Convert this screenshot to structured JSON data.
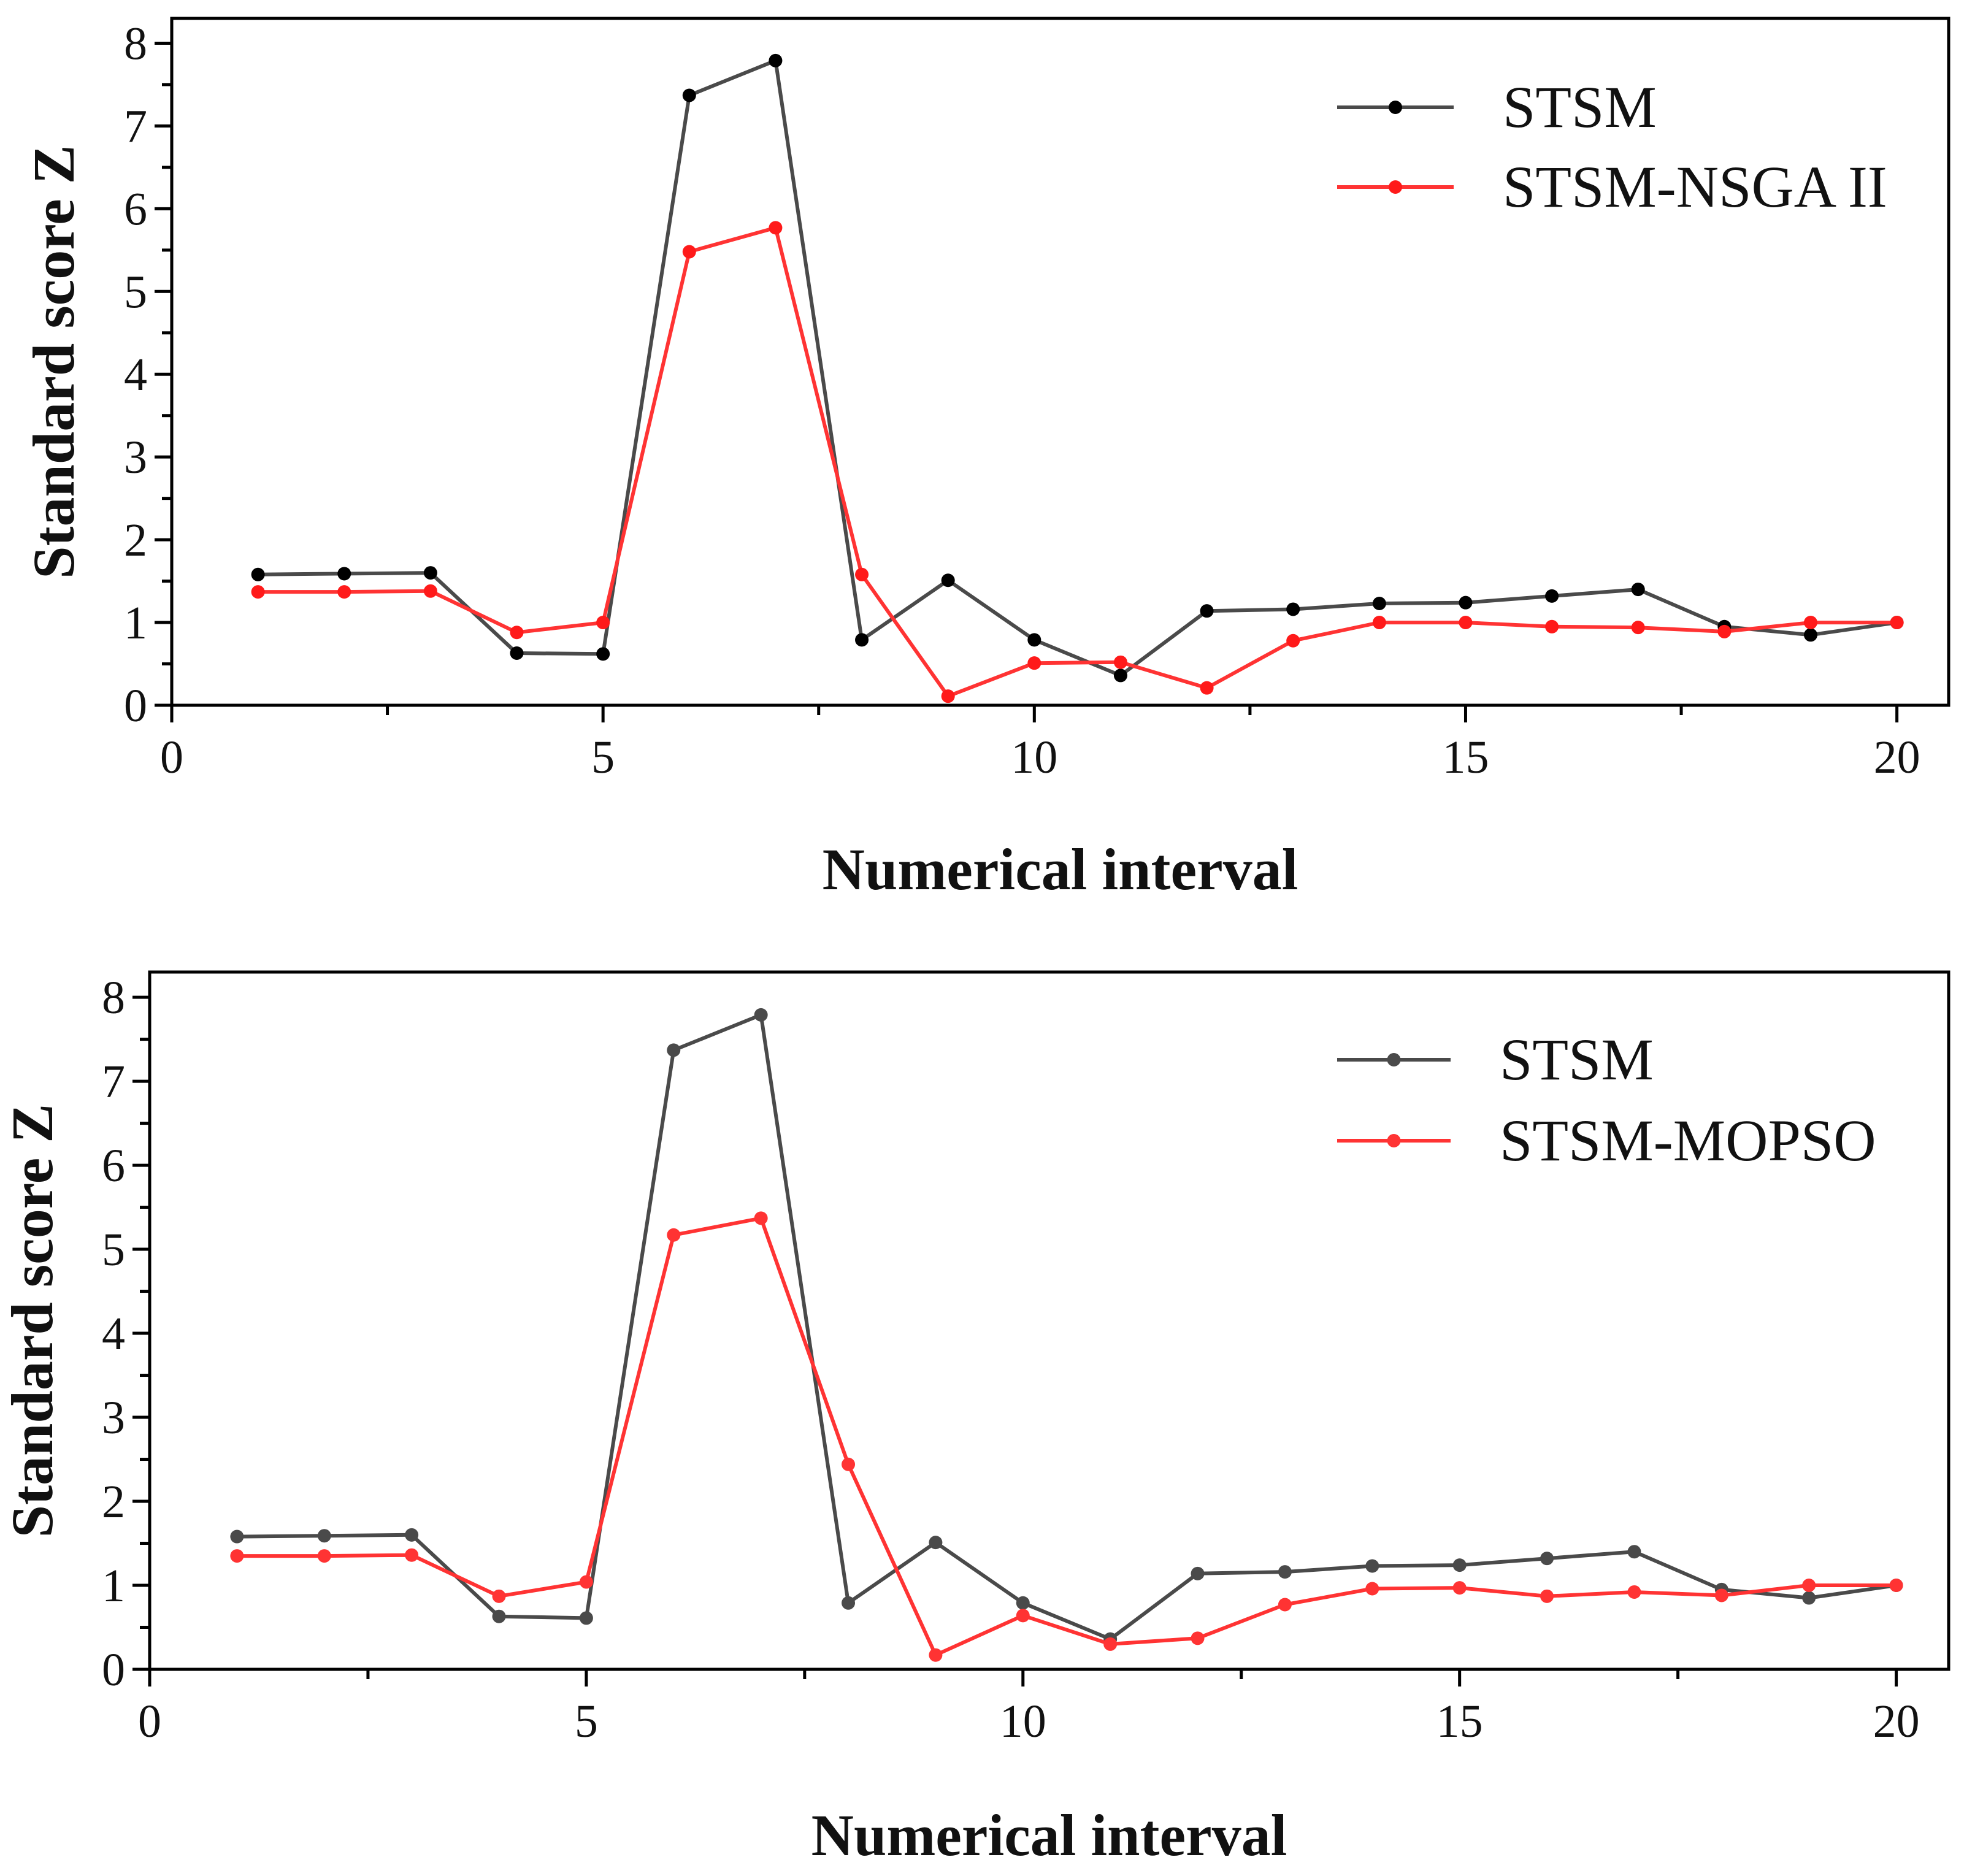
{
  "chart_data": [
    {
      "type": "line",
      "title": "",
      "xlabel": "Numerical interval",
      "ylabel": "Standard score Z",
      "xlim": [
        0,
        20.6
      ],
      "ylim": [
        0,
        8.3
      ],
      "xticks": [
        0,
        5,
        10,
        15,
        20
      ],
      "yticks": [
        0,
        1,
        2,
        3,
        4,
        5,
        6,
        7,
        8
      ],
      "legend_position": "top-right",
      "grid": false,
      "x": [
        1,
        2,
        3,
        4,
        5,
        6,
        7,
        8,
        9,
        10,
        11,
        12,
        13,
        14,
        15,
        16,
        17,
        18,
        19,
        20
      ],
      "series": [
        {
          "name": "STSM",
          "line_color": "#4a4a4a",
          "marker_color": "#000000",
          "values": [
            1.58,
            1.59,
            1.6,
            0.63,
            0.62,
            7.37,
            7.79,
            0.79,
            1.51,
            0.79,
            0.36,
            1.14,
            1.16,
            1.23,
            1.24,
            1.32,
            1.4,
            0.95,
            0.85,
            1.0
          ]
        },
        {
          "name": "STSM-NSGA II",
          "line_color": "#ff3333",
          "marker_color": "#ff1a1a",
          "values": [
            1.37,
            1.37,
            1.38,
            0.88,
            1.0,
            5.48,
            5.77,
            1.58,
            0.11,
            0.51,
            0.52,
            0.21,
            0.78,
            1.0,
            1.0,
            0.95,
            0.94,
            0.89,
            1.0,
            1.0
          ]
        }
      ]
    },
    {
      "type": "line",
      "title": "",
      "xlabel": "Numerical interval",
      "ylabel": "Standard score Z",
      "xlim": [
        0,
        20.6
      ],
      "ylim": [
        0,
        8.3
      ],
      "xticks": [
        0,
        5,
        10,
        15,
        20
      ],
      "yticks": [
        0,
        1,
        2,
        3,
        4,
        5,
        6,
        7,
        8
      ],
      "legend_position": "top-right",
      "grid": false,
      "x": [
        1,
        2,
        3,
        4,
        5,
        6,
        7,
        8,
        9,
        10,
        11,
        12,
        13,
        14,
        15,
        16,
        17,
        18,
        19,
        20
      ],
      "series": [
        {
          "name": "STSM",
          "line_color": "#4a4a4a",
          "marker_color": "#4a4a4a",
          "values": [
            1.58,
            1.59,
            1.6,
            0.63,
            0.61,
            7.37,
            7.79,
            0.79,
            1.51,
            0.79,
            0.36,
            1.14,
            1.16,
            1.23,
            1.24,
            1.32,
            1.4,
            0.95,
            0.85,
            1.0
          ]
        },
        {
          "name": "STSM-MOPSO",
          "line_color": "#ff3333",
          "marker_color": "#ff3333",
          "values": [
            1.35,
            1.35,
            1.36,
            0.87,
            1.04,
            5.17,
            5.37,
            2.44,
            0.17,
            0.64,
            0.3,
            0.37,
            0.77,
            0.96,
            0.97,
            0.87,
            0.92,
            0.88,
            1.0,
            1.0
          ]
        }
      ]
    }
  ]
}
